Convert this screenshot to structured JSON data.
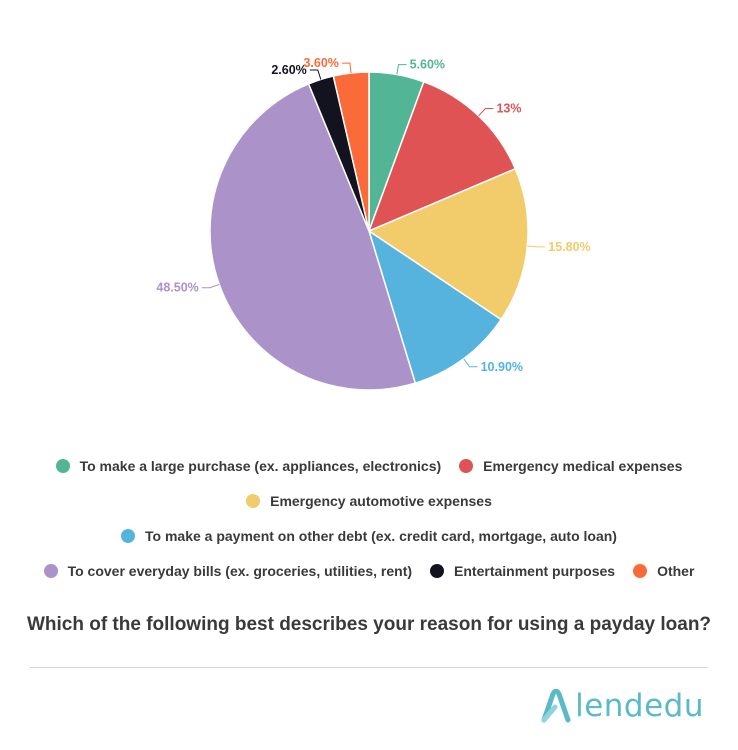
{
  "chart_data": {
    "type": "pie",
    "title": "",
    "question": "Which of the following best describes your reason for using a payday loan?",
    "legend_position": "bottom",
    "slices": [
      {
        "label": "To make a large purchase (ex. appliances, electronics)",
        "value": 5.6,
        "display": "5.60%",
        "color": "#52b596"
      },
      {
        "label": "Emergency medical expenses",
        "value": 13,
        "display": "13%",
        "color": "#df5355"
      },
      {
        "label": "Emergency automotive expenses",
        "value": 15.8,
        "display": "15.80%",
        "color": "#f2cb6a"
      },
      {
        "label": "To make a payment on other debt (ex. credit card, mortgage, auto loan)",
        "value": 10.9,
        "display": "10.90%",
        "color": "#55b3de"
      },
      {
        "label": "To cover everyday bills (ex. groceries, utilities, rent)",
        "value": 48.5,
        "display": "48.50%",
        "color": "#ab93c9"
      },
      {
        "label": "Entertainment purposes",
        "value": 2.6,
        "display": "2.60%",
        "color": "#13121f"
      },
      {
        "label": "Other",
        "value": 3.6,
        "display": "3.60%",
        "color": "#fb6b3a"
      }
    ]
  },
  "legend_rows": [
    [
      0,
      1
    ],
    [
      2
    ],
    [
      3
    ],
    [
      4,
      5,
      6
    ]
  ],
  "brand": {
    "name": "lendedu",
    "color": "#5bbac8"
  }
}
